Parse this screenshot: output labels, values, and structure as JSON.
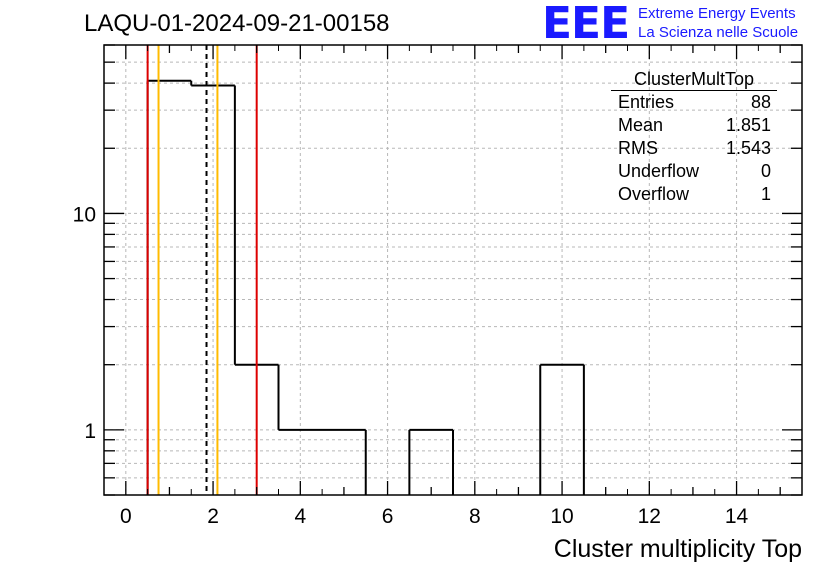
{
  "title": "LAQU-01-2024-09-21-00158",
  "logo": {
    "mark": "EEE",
    "line1": "Extreme Energy Events",
    "line2": "La Scienza nelle Scuole",
    "color": "#1a1aff"
  },
  "stats_box": {
    "title": "ClusterMultTop",
    "rows": [
      {
        "label": "Entries",
        "value": "88"
      },
      {
        "label": "Mean",
        "value": "1.851"
      },
      {
        "label": "RMS",
        "value": "1.543"
      },
      {
        "label": "Underflow",
        "value": "0"
      },
      {
        "label": "Overflow",
        "value": "1"
      }
    ]
  },
  "chart_data": {
    "type": "bar",
    "histogram": true,
    "xlabel": "Cluster multiplicity Top",
    "ylabel": "",
    "xlim": [
      -0.5,
      15.5
    ],
    "ylim": [
      0.5,
      60
    ],
    "yscale": "log",
    "grid": true,
    "bin_width": 1,
    "bin_centers": [
      0,
      1,
      2,
      3,
      4,
      5,
      6,
      7,
      8,
      9,
      10,
      11,
      12,
      13,
      14,
      15
    ],
    "values": [
      0,
      41,
      39,
      2,
      1,
      1,
      0,
      1,
      0,
      0,
      2,
      0,
      0,
      0,
      0,
      0
    ],
    "x_ticks": [
      "0",
      "2",
      "4",
      "6",
      "8",
      "10",
      "12",
      "14"
    ],
    "y_ticks": [
      "1",
      "10"
    ],
    "vertical_lines": [
      {
        "x": 0.5,
        "color": "#dd0000",
        "style": "solid"
      },
      {
        "x": 0.75,
        "color": "#ffbb00",
        "style": "solid"
      },
      {
        "x": 1.85,
        "color": "#000000",
        "style": "dashed"
      },
      {
        "x": 2.1,
        "color": "#ffbb00",
        "style": "solid"
      },
      {
        "x": 3.0,
        "color": "#dd0000",
        "style": "solid"
      }
    ]
  }
}
